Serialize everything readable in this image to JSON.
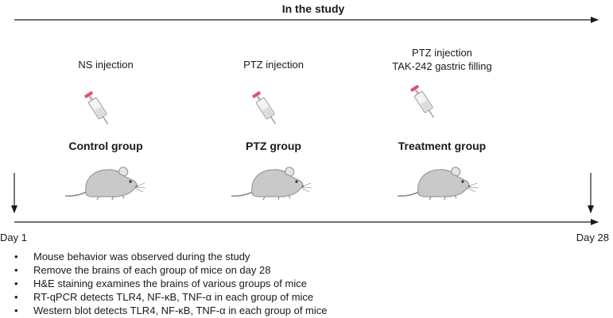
{
  "header": {
    "title": "In the study"
  },
  "groups": [
    {
      "injection": [
        "NS injection"
      ],
      "name": "Control group"
    },
    {
      "injection": [
        "PTZ injection"
      ],
      "name": "PTZ group"
    },
    {
      "injection": [
        "PTZ injection",
        "TAK-242 gastric filling"
      ],
      "name": "Treatment group"
    }
  ],
  "timeline": {
    "start_label": "Day 1",
    "end_label": "Day 28"
  },
  "notes": [
    "Mouse behavior was observed during the study",
    "Remove the brains of each group of mice on day 28",
    "H&E staining examines the brains of various groups of mice",
    "RT-qPCR detects TLR4, NF-κB, TNF-α in each group of mice",
    "Western blot detects TLR4, NF-κB, TNF-α in each group of mice"
  ],
  "colors": {
    "line": "#1a1a1a",
    "syringe_plunger": "#e0506a",
    "mouse_body": "#c9c9c9"
  }
}
